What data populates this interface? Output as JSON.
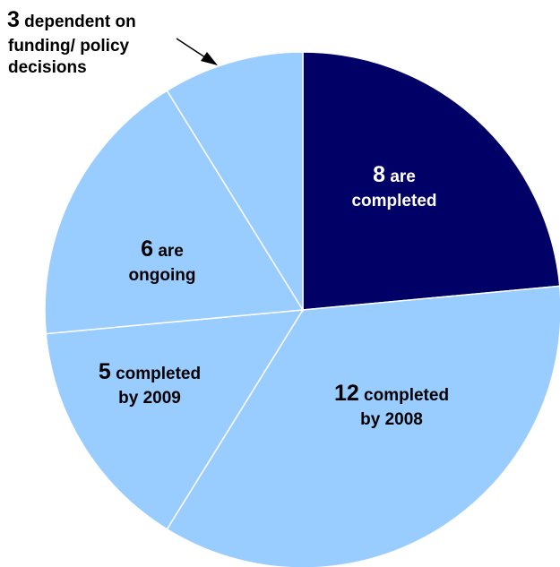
{
  "chart_data": {
    "type": "pie",
    "title": "",
    "start_angle_deg": 0,
    "direction": "clockwise",
    "colors": {
      "highlight": "#000066",
      "default": "#99ccff",
      "edge": "#ffffff",
      "text_on_dark": "#ffffff",
      "text_on_light": "#000000"
    },
    "slices": [
      {
        "value": 8,
        "number": "8",
        "label_lines": [
          "are",
          "completed"
        ],
        "highlight": true
      },
      {
        "value": 12,
        "number": "12",
        "label_lines": [
          "completed",
          "by 2008"
        ],
        "highlight": false
      },
      {
        "value": 5,
        "number": "5",
        "label_lines": [
          "completed",
          "by 2009"
        ],
        "highlight": false
      },
      {
        "value": 6,
        "number": "6",
        "label_lines": [
          "are",
          "ongoing"
        ],
        "highlight": false
      },
      {
        "value": 3,
        "number": "3",
        "label_lines": [
          "dependent on",
          "funding/ policy",
          "decisions"
        ],
        "highlight": false,
        "external_label": true
      }
    ]
  }
}
